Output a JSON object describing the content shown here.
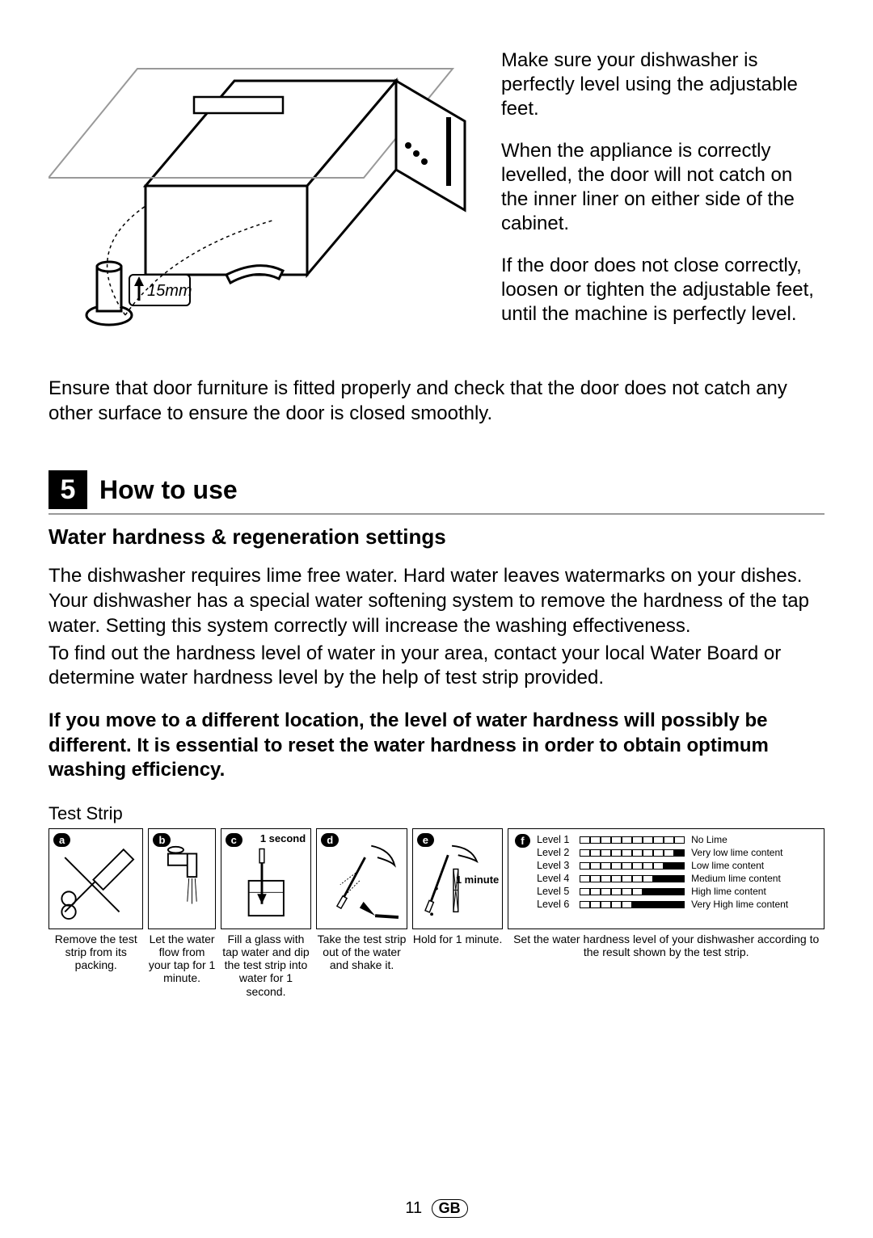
{
  "top": {
    "p1": "Make sure your dishwasher is perfectly level using the adjustable feet.",
    "p2": "When the appliance is correctly levelled, the door will not catch on the inner liner on either side of the cabinet.",
    "p3": "If the door does not close correctly, loosen or tighten the adjustable feet, until the machine is perfectly level.",
    "illoLabel": "15mm"
  },
  "fullPara": "Ensure that door furniture is fitted properly and check that the door does not catch any other surface to ensure the door is closed smoothly.",
  "section": {
    "num": "5",
    "title": "How to use"
  },
  "subTitle": "Water hardness & regeneration settings",
  "body1": "The dishwasher requires lime free water. Hard water leaves watermarks on your dishes. Your dishwasher has a special water softening system to remove the hardness of the tap water. Setting this system correctly will increase the washing effectiveness.",
  "body2": "To find out the hardness level of water in your area, contact your local Water Board or determine water hardness level by the help of test strip provided.",
  "bold": "If you move to a different location, the level of water hardness will possibly be different. It is essential to reset the water hardness in order to obtain optimum washing efficiency.",
  "stripLabel": "Test Strip",
  "steps": {
    "a": "a",
    "b": "b",
    "c": "c",
    "d": "d",
    "e": "e",
    "f": "f",
    "cNote": "1 second",
    "eNote": "1 minute"
  },
  "captions": {
    "a": "Remove the test strip from its packing.",
    "b": "Let the water flow from your tap for 1 minute.",
    "c": "Fill a glass with tap water and dip the test strip into water for 1 second.",
    "d": "Take the test strip out of the water and shake it.",
    "e": "Hold for 1 minute.",
    "f": "Set the water hardness level of your dishwasher according to the result shown by the test strip."
  },
  "levels": [
    {
      "label": "Level 1",
      "filled": 0,
      "desc": "No Lime"
    },
    {
      "label": "Level 2",
      "filled": 1,
      "desc": "Very low lime content"
    },
    {
      "label": "Level 3",
      "filled": 2,
      "desc": "Low lime content"
    },
    {
      "label": "Level 4",
      "filled": 3,
      "desc": "Medium lime content"
    },
    {
      "label": "Level 5",
      "filled": 4,
      "desc": "High lime content"
    },
    {
      "label": "Level 6",
      "filled": 5,
      "desc": "Very High lime content"
    }
  ],
  "footer": {
    "page": "11",
    "region": "GB"
  }
}
